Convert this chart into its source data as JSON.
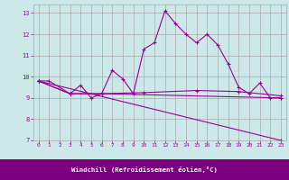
{
  "background_color": "#cce8e8",
  "line_color": "#990099",
  "grid_color": "#aaaaaa",
  "xlabel": "Windchill (Refroidissement éolien,°C)",
  "xlim": [
    -0.5,
    23.5
  ],
  "ylim": [
    7,
    13.4
  ],
  "xticks": [
    0,
    1,
    2,
    3,
    4,
    5,
    6,
    7,
    8,
    9,
    10,
    11,
    12,
    13,
    14,
    15,
    16,
    17,
    18,
    19,
    20,
    21,
    22,
    23
  ],
  "yticks": [
    7,
    8,
    9,
    10,
    11,
    12,
    13
  ],
  "series1_x": [
    0,
    1,
    3,
    4,
    5,
    6,
    7,
    8,
    9,
    10,
    11,
    12,
    13,
    14,
    15,
    16,
    17,
    18,
    19,
    20,
    21,
    22,
    23
  ],
  "series1_y": [
    9.8,
    9.8,
    9.2,
    9.6,
    9.0,
    9.2,
    10.3,
    9.9,
    9.2,
    11.3,
    11.6,
    13.1,
    12.5,
    12.0,
    11.6,
    12.0,
    11.5,
    10.6,
    9.5,
    9.2,
    9.7,
    9.0,
    9.0
  ],
  "series2_x": [
    0,
    3,
    6,
    10,
    15,
    19,
    23
  ],
  "series2_y": [
    9.8,
    9.2,
    9.2,
    9.25,
    9.35,
    9.3,
    9.1
  ],
  "series3_x": [
    0,
    23
  ],
  "series3_y": [
    9.8,
    7.0
  ],
  "series4_x": [
    0,
    3,
    6,
    23
  ],
  "series4_y": [
    9.8,
    9.2,
    9.2,
    9.0
  ],
  "label_bg_color": "#7b0080",
  "label_text_color": "#ffffff"
}
